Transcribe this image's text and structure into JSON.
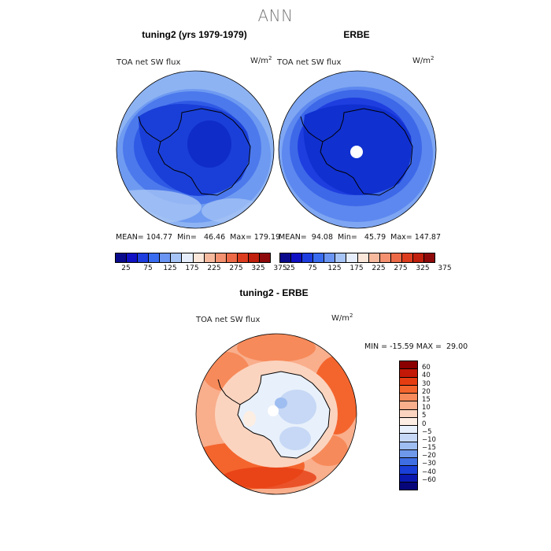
{
  "header": {
    "title": "ANN"
  },
  "panels": {
    "model": {
      "title": "tuning2 (yrs 1979-1979)",
      "variable": "TOA net SW flux",
      "units_base": "W/m",
      "units_exp": "2",
      "stats": "MEAN= 104.77  Min=   46.46  Max= 179.19"
    },
    "obs": {
      "title": "ERBE",
      "variable": "TOA net SW flux",
      "units_base": "W/m",
      "units_exp": "2",
      "stats": "MEAN=  94.08  Min=   45.79  Max= 147.87"
    },
    "diff": {
      "title": "tuning2 - ERBE",
      "variable": "TOA net SW flux",
      "units_base": "W/m",
      "units_exp": "2",
      "stats": "MIN = -15.59 MAX =  29.00"
    }
  },
  "colorbar_abs": {
    "colors": [
      "#0a0a8c",
      "#1010c4",
      "#1e3ee0",
      "#3a6cf0",
      "#6b95f2",
      "#a6c4f5",
      "#e6eefb",
      "#fbe6da",
      "#f7b99e",
      "#f39170",
      "#ec6a47",
      "#dc3d1f",
      "#c0200d",
      "#8e0a0a"
    ],
    "ticks": [
      "25",
      "75",
      "125",
      "175",
      "225",
      "275",
      "325",
      "375"
    ]
  },
  "colorbar_diff": {
    "colors": [
      "#8b0000",
      "#c21807",
      "#e63c12",
      "#f4652e",
      "#f78a5a",
      "#f9ae8c",
      "#fbd4bf",
      "#fdeee3",
      "#e8f0fb",
      "#c6d8f5",
      "#9ebdf1",
      "#6e98ea",
      "#3f6ee3",
      "#1a3fd8",
      "#0b18b0",
      "#06067a"
    ],
    "ticks": [
      "60",
      "40",
      "30",
      "20",
      "15",
      "10",
      "5",
      "0",
      "−5",
      "−10",
      "−15",
      "−20",
      "−30",
      "−40",
      "−60"
    ]
  }
}
